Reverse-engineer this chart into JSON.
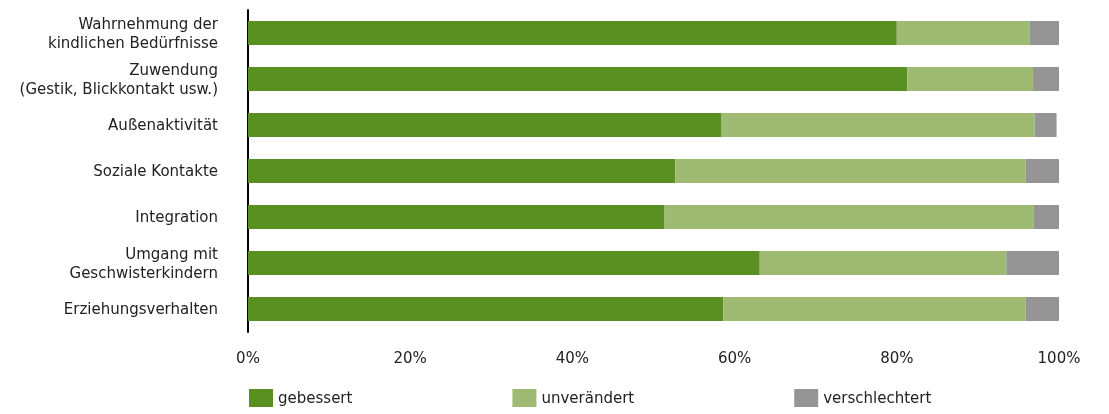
{
  "chart_data": {
    "type": "bar",
    "orientation": "horizontal",
    "stacked": true,
    "categories": [
      "Wahrnehmung der\nkindlichen Bedürfnisse",
      "Zuwendung\n(Gestik, Blickkontakt usw.)",
      "Außenaktivität",
      "Soziale Kontakte",
      "Integration",
      "Umgang mit\nGeschwisterkindern",
      "Erziehungsverhalten"
    ],
    "series": [
      {
        "name": "gebessert",
        "color": "#5a8f22",
        "values": [
          80.0,
          81.3,
          58.4,
          52.7,
          51.3,
          63.1,
          58.6
        ]
      },
      {
        "name": "unverändert",
        "color": "#9fba72",
        "values": [
          16.4,
          15.5,
          38.6,
          43.2,
          45.6,
          30.4,
          37.3
        ]
      },
      {
        "name": "verschlechtert",
        "color": "#959595",
        "values": [
          3.6,
          3.2,
          2.7,
          4.1,
          3.1,
          6.5,
          4.1
        ]
      }
    ],
    "xlim": [
      0,
      100
    ],
    "xticks": [
      {
        "value": 0,
        "label": "0%"
      },
      {
        "value": 20,
        "label": "20%"
      },
      {
        "value": 40,
        "label": "40%"
      },
      {
        "value": 60,
        "label": "60%"
      },
      {
        "value": 80,
        "label": "80%"
      },
      {
        "value": 100,
        "label": "100%"
      }
    ],
    "grid": false,
    "legend": "bottom"
  }
}
